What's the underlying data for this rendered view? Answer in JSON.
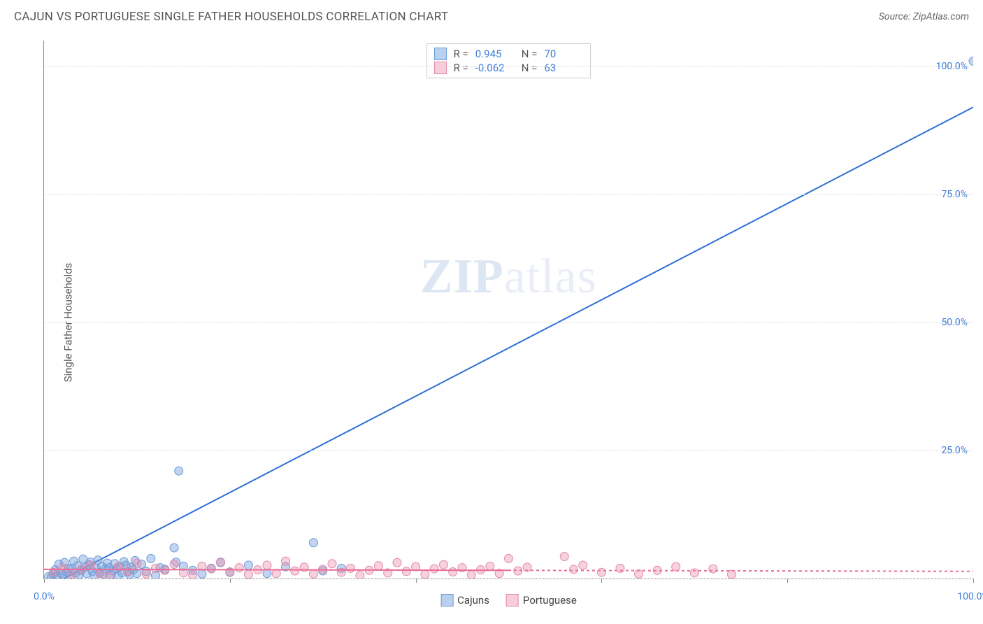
{
  "title": "CAJUN VS PORTUGUESE SINGLE FATHER HOUSEHOLDS CORRELATION CHART",
  "source": "Source: ZipAtlas.com",
  "ylabel": "Single Father Households",
  "watermark_zip": "ZIP",
  "watermark_atlas": "atlas",
  "chart": {
    "type": "scatter",
    "background_color": "#ffffff",
    "grid_color": "#dddddd",
    "axis_color": "#888888",
    "xlim": [
      0,
      100
    ],
    "ylim": [
      0,
      105
    ],
    "xticks": [
      0,
      20,
      40,
      60,
      80,
      100
    ],
    "xtick_labels": [
      "0.0%",
      "",
      "",
      "",
      "",
      "100.0%"
    ],
    "yticks": [
      0,
      25,
      50,
      75,
      100
    ],
    "ytick_labels": [
      "",
      "25.0%",
      "50.0%",
      "75.0%",
      "100.0%"
    ],
    "tick_color": "#3b7dd8",
    "tick_fontsize": 14,
    "label_fontsize": 15,
    "title_fontsize": 17,
    "marker_radius": 6,
    "marker_opacity": 0.55,
    "line_width": 2,
    "series": [
      {
        "name": "Cajuns",
        "color_fill": "rgba(120,160,220,0.45)",
        "color_stroke": "#6a9bd8",
        "swatch_fill": "#b9d0ee",
        "swatch_border": "#6a9bd8",
        "R": "0.945",
        "N": "70",
        "trend": {
          "x1": 0,
          "y1": -2,
          "x2": 100,
          "y2": 92,
          "color": "#2e6fd6",
          "dash": "none"
        },
        "points": [
          [
            0.5,
            0.4
          ],
          [
            0.8,
            0.3
          ],
          [
            1.0,
            0.9
          ],
          [
            1.2,
            1.7
          ],
          [
            1.4,
            0.5
          ],
          [
            1.6,
            2.8
          ],
          [
            1.8,
            1.0
          ],
          [
            2.0,
            0.7
          ],
          [
            2.2,
            3.1
          ],
          [
            2.4,
            1.3
          ],
          [
            2.6,
            2.0
          ],
          [
            2.8,
            0.4
          ],
          [
            3.0,
            1.9
          ],
          [
            3.2,
            3.4
          ],
          [
            3.4,
            1.1
          ],
          [
            3.6,
            2.5
          ],
          [
            3.8,
            0.8
          ],
          [
            4.0,
            1.6
          ],
          [
            4.2,
            3.8
          ],
          [
            4.4,
            2.2
          ],
          [
            4.6,
            1.0
          ],
          [
            4.8,
            2.7
          ],
          [
            5.0,
            3.2
          ],
          [
            5.2,
            1.4
          ],
          [
            5.4,
            0.6
          ],
          [
            5.6,
            2.0
          ],
          [
            5.8,
            3.6
          ],
          [
            6.0,
            1.2
          ],
          [
            6.2,
            2.4
          ],
          [
            6.4,
            0.9
          ],
          [
            6.6,
            1.8
          ],
          [
            6.8,
            3.0
          ],
          [
            7.0,
            2.1
          ],
          [
            7.2,
            0.7
          ],
          [
            7.4,
            1.5
          ],
          [
            7.6,
            2.9
          ],
          [
            7.8,
            1.9
          ],
          [
            8.0,
            0.5
          ],
          [
            8.2,
            2.3
          ],
          [
            8.4,
            1.1
          ],
          [
            8.6,
            3.3
          ],
          [
            8.8,
            2.6
          ],
          [
            9.0,
            1.3
          ],
          [
            9.2,
            0.8
          ],
          [
            9.4,
            2.2
          ],
          [
            9.6,
            1.7
          ],
          [
            9.8,
            3.5
          ],
          [
            10.0,
            1.0
          ],
          [
            10.5,
            2.8
          ],
          [
            11.0,
            1.4
          ],
          [
            11.5,
            3.9
          ],
          [
            12.0,
            0.6
          ],
          [
            12.5,
            2.1
          ],
          [
            13.0,
            1.8
          ],
          [
            14.0,
            6.0
          ],
          [
            14.2,
            3.2
          ],
          [
            14.5,
            21.0
          ],
          [
            15.0,
            2.4
          ],
          [
            16.0,
            1.6
          ],
          [
            17.0,
            0.9
          ],
          [
            18.0,
            2.0
          ],
          [
            19.0,
            3.1
          ],
          [
            20.0,
            1.2
          ],
          [
            22.0,
            2.6
          ],
          [
            24.0,
            1.0
          ],
          [
            26.0,
            2.3
          ],
          [
            29.0,
            7.0
          ],
          [
            30.0,
            1.5
          ],
          [
            32.0,
            2.0
          ],
          [
            100.0,
            101.0
          ]
        ]
      },
      {
        "name": "Portuguese",
        "color_fill": "rgba(235,140,170,0.40)",
        "color_stroke": "#e08aa8",
        "swatch_fill": "#f6cdd9",
        "swatch_border": "#e08aa8",
        "R": "-0.062",
        "N": "63",
        "trend": {
          "x1": 0,
          "y1": 1.8,
          "x2": 100,
          "y2": 1.4,
          "color": "#e86f98",
          "dash": "4,4"
        },
        "points": [
          [
            1.0,
            1.2
          ],
          [
            2.0,
            2.1
          ],
          [
            3.0,
            0.8
          ],
          [
            4.0,
            1.8
          ],
          [
            5.0,
            2.6
          ],
          [
            6.0,
            1.0
          ],
          [
            7.0,
            0.5
          ],
          [
            8.0,
            2.3
          ],
          [
            9.0,
            1.4
          ],
          [
            10.0,
            3.0
          ],
          [
            11.0,
            0.9
          ],
          [
            12.0,
            2.0
          ],
          [
            13.0,
            1.6
          ],
          [
            14.0,
            2.8
          ],
          [
            15.0,
            1.1
          ],
          [
            16.0,
            0.7
          ],
          [
            17.0,
            2.4
          ],
          [
            18.0,
            1.9
          ],
          [
            19.0,
            3.2
          ],
          [
            20.0,
            1.3
          ],
          [
            21.0,
            2.1
          ],
          [
            22.0,
            0.8
          ],
          [
            23.0,
            1.7
          ],
          [
            24.0,
            2.6
          ],
          [
            25.0,
            1.0
          ],
          [
            26.0,
            3.4
          ],
          [
            27.0,
            1.5
          ],
          [
            28.0,
            2.2
          ],
          [
            29.0,
            0.9
          ],
          [
            30.0,
            1.8
          ],
          [
            31.0,
            2.9
          ],
          [
            32.0,
            1.2
          ],
          [
            33.0,
            2.0
          ],
          [
            34.0,
            0.6
          ],
          [
            35.0,
            1.6
          ],
          [
            36.0,
            2.5
          ],
          [
            37.0,
            1.1
          ],
          [
            38.0,
            3.1
          ],
          [
            39.0,
            1.4
          ],
          [
            40.0,
            2.3
          ],
          [
            41.0,
            0.8
          ],
          [
            42.0,
            1.9
          ],
          [
            43.0,
            2.7
          ],
          [
            44.0,
            1.3
          ],
          [
            45.0,
            2.1
          ],
          [
            46.0,
            0.7
          ],
          [
            47.0,
            1.7
          ],
          [
            48.0,
            2.4
          ],
          [
            49.0,
            1.0
          ],
          [
            50.0,
            3.9
          ],
          [
            51.0,
            1.5
          ],
          [
            52.0,
            2.2
          ],
          [
            56.0,
            4.3
          ],
          [
            57.0,
            1.8
          ],
          [
            58.0,
            2.6
          ],
          [
            60.0,
            1.2
          ],
          [
            62.0,
            2.0
          ],
          [
            64.0,
            0.9
          ],
          [
            66.0,
            1.6
          ],
          [
            68.0,
            2.3
          ],
          [
            70.0,
            1.1
          ],
          [
            72.0,
            1.9
          ],
          [
            74.0,
            0.8
          ]
        ]
      }
    ],
    "legend": {
      "items": [
        "Cajuns",
        "Portuguese"
      ]
    },
    "stats_labels": {
      "R": "R =",
      "N": "N ="
    }
  }
}
